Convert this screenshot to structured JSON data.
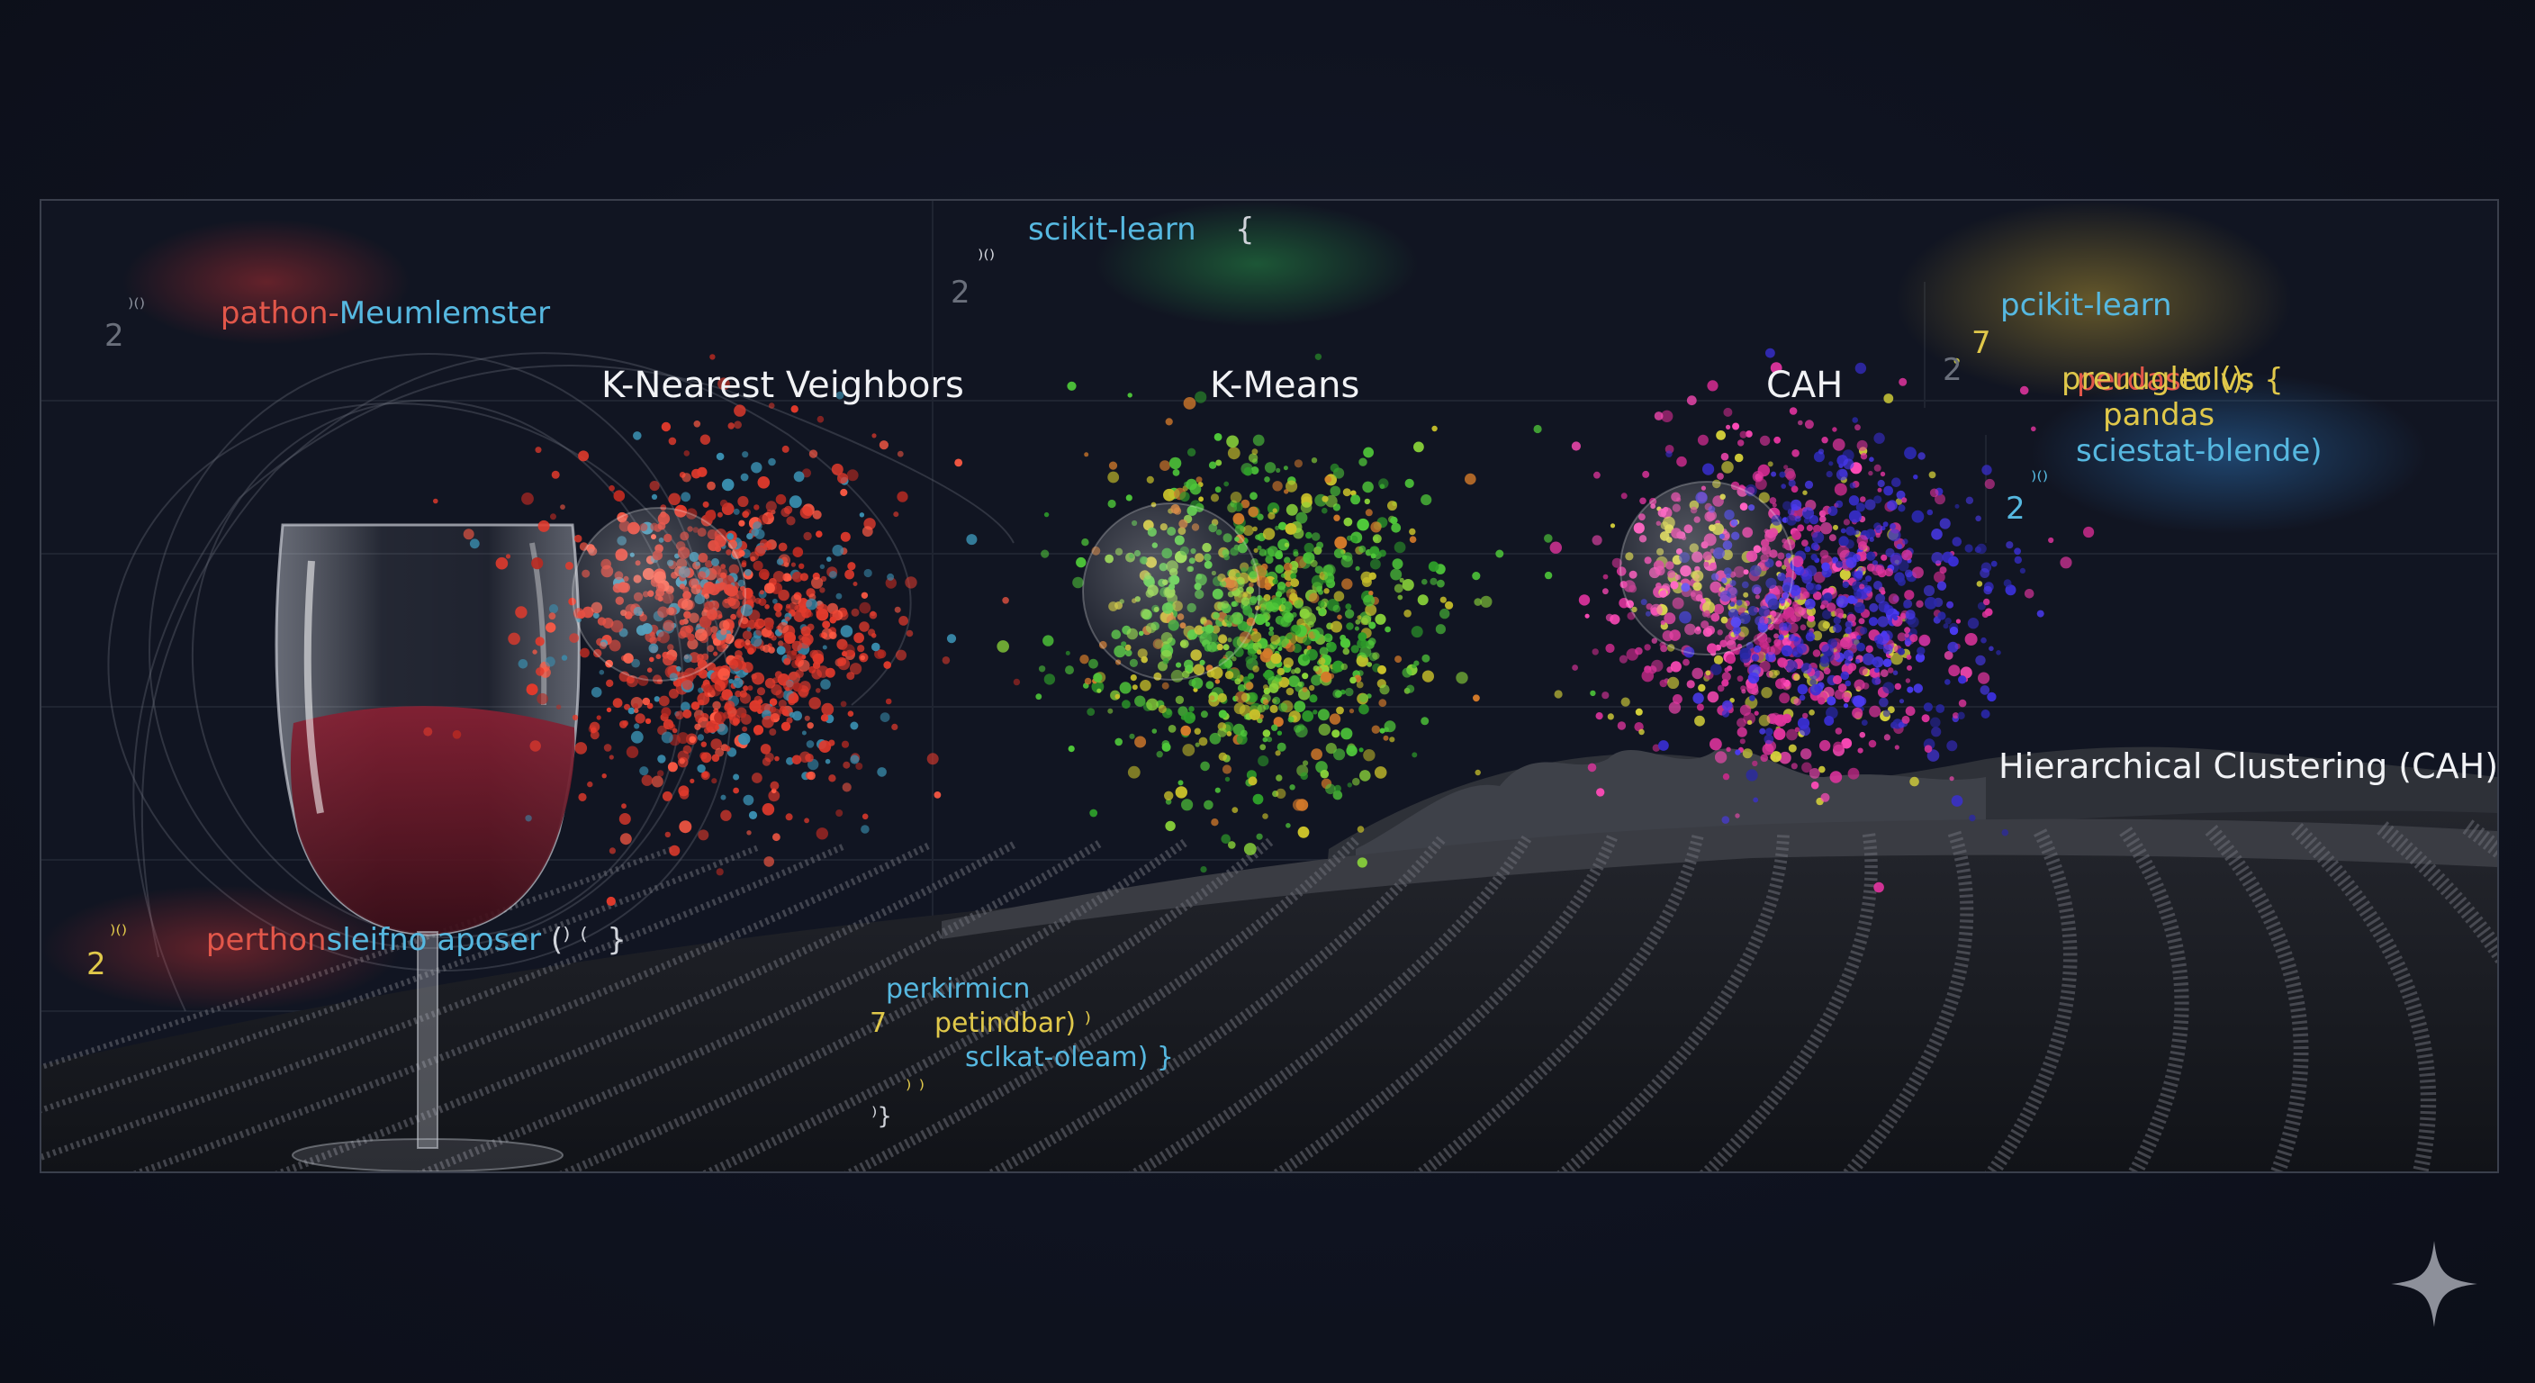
{
  "scene": {
    "cluster_labels": {
      "knn": "K-Nearest Veighbors",
      "kmeans": "K-Means",
      "cah": "CAH",
      "cah_caption": "Hierarchical Clustering (CAH)"
    },
    "code_snippets": {
      "top_left": {
        "line1_a": "pathon-",
        "line1_b": "Meumlemster",
        "marker": "⁾⁽⁾",
        "digit": "2"
      },
      "top_center": {
        "line1": "scikit-learn",
        "brace": "{",
        "marker": "⁾⁽⁾",
        "digit": "2"
      },
      "top_right": {
        "line1": "pcikit-learn",
        "num": "7",
        "line2_a": "perdas",
        "line2_b": "tolvs {",
        "line3": "preuugler ();",
        "line4": "pandas",
        "line5": "sciestat-blende)",
        "marker": "⁾⁽⁾",
        "digit_left": "2",
        "digit_bottom": "2"
      },
      "mid_left": {
        "line1_a": "perthon",
        "line1_b": "sleifno",
        "line1_c": "aposer",
        "line1_d": " (⁾ ⁽  }",
        "marker": "⁾⁽⁾",
        "digit": "2"
      },
      "bottom_center": {
        "line1": "perkirmicn",
        "num": "7",
        "line2": "petindbar) ⁾",
        "line3": "sclkat-oleam) }",
        "line4": "⁾ ⁾",
        "line5": "⁾}"
      }
    },
    "colors": {
      "knn": "#e23a2c",
      "kmeans_green": "#4fc83a",
      "kmeans_yellow": "#c8c02a",
      "cah_magenta": "#e0349e",
      "cah_blue": "#3a2fd6",
      "code_red": "#e2574a",
      "code_cyan": "#56b8e0",
      "code_yellow": "#e0c84a",
      "wine": "#6e1826"
    },
    "icons": {
      "wine_glass": "wine-glass-illustration",
      "vineyard": "vineyard-rows-illustration",
      "sparkle": "sparkle-icon"
    }
  }
}
